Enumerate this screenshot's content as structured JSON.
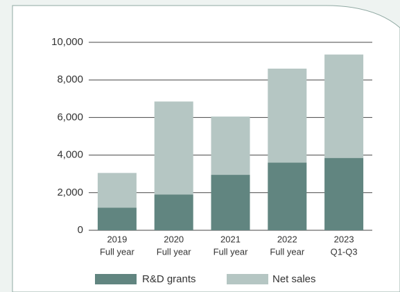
{
  "chart_data": {
    "type": "stacked_bar",
    "categories": [
      [
        "2019",
        "Full year"
      ],
      [
        "2020",
        "Full year"
      ],
      [
        "2021",
        "Full year"
      ],
      [
        "2022",
        "Full year"
      ],
      [
        "2023",
        "Q1-Q3"
      ]
    ],
    "series": [
      {
        "name": "R&D grants",
        "color": "#618580",
        "values": [
          1200,
          1900,
          2950,
          3600,
          3850
        ]
      },
      {
        "name": "Net sales",
        "color": "#b5c6c3",
        "values": [
          1850,
          4950,
          3100,
          5000,
          5500
        ]
      }
    ],
    "ylim": [
      0,
      10000
    ],
    "yticks": [
      0,
      {
        "value": 2000,
        "label": "2,000"
      },
      {
        "value": 4000,
        "label": "4,000"
      },
      {
        "value": 6000,
        "label": "6,000"
      },
      {
        "value": 8000,
        "label": "8,000"
      },
      {
        "value": 10000,
        "label": "10,000"
      }
    ],
    "grid": true
  }
}
